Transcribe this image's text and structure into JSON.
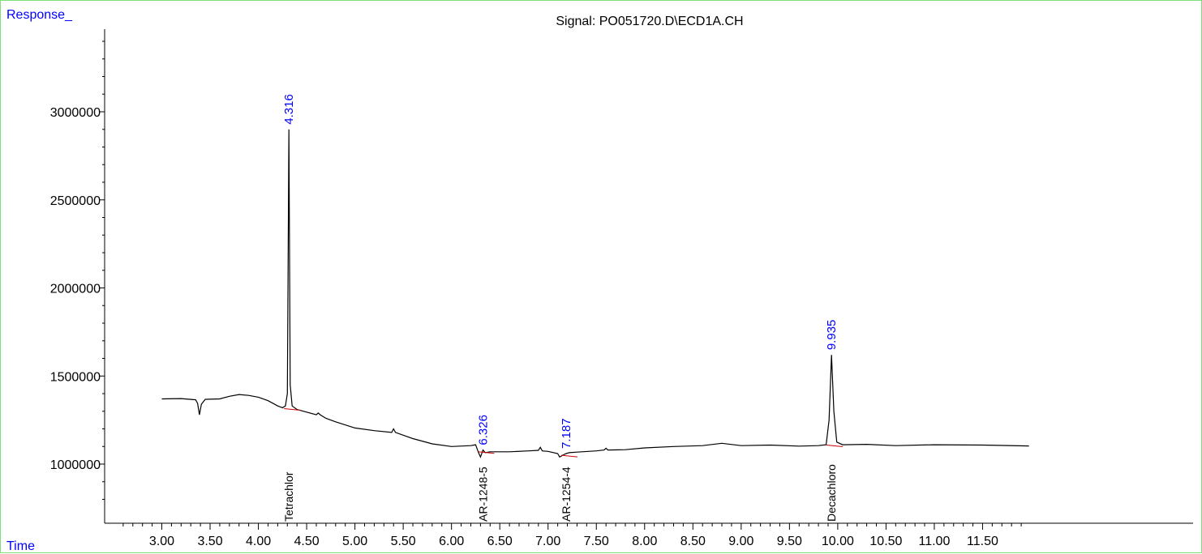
{
  "chart_data": {
    "type": "line",
    "title": "Signal: PO051720.D\\ECD1A.CH",
    "ylabel": "Response_",
    "xlabel": "Time",
    "xlim": [
      2.5,
      12.0
    ],
    "ylim": [
      700000,
      3500000
    ],
    "x_ticks": [
      "3.00",
      "3.50",
      "4.00",
      "4.50",
      "5.00",
      "5.50",
      "6.00",
      "6.50",
      "7.00",
      "7.50",
      "8.00",
      "8.50",
      "9.00",
      "9.50",
      "10.00",
      "10.50",
      "11.00",
      "11.50"
    ],
    "y_ticks": [
      "1000000",
      "1500000",
      "2000000",
      "2500000",
      "3000000"
    ],
    "series": [
      {
        "x": [
          3.0,
          3.2,
          3.35,
          3.37,
          3.39,
          3.41,
          3.45,
          3.6,
          3.7,
          3.8,
          3.9,
          4.0,
          4.1,
          4.2,
          4.25,
          4.28,
          4.3,
          4.316,
          4.33,
          4.35,
          4.4,
          4.5,
          4.6,
          4.62,
          4.64,
          4.7,
          4.8,
          5.0,
          5.2,
          5.38,
          5.4,
          5.42,
          5.6,
          5.8,
          6.0,
          6.2,
          6.25,
          6.28,
          6.3,
          6.326,
          6.35,
          6.4,
          6.6,
          6.8,
          6.9,
          6.92,
          6.94,
          7.0,
          7.1,
          7.12,
          7.15,
          7.187,
          7.22,
          7.3,
          7.5,
          7.58,
          7.6,
          7.62,
          7.8,
          8.0,
          8.3,
          8.6,
          8.8,
          9.0,
          9.3,
          9.6,
          9.8,
          9.88,
          9.91,
          9.935,
          9.96,
          9.99,
          10.05,
          10.3,
          10.6,
          11.0,
          11.5,
          11.98
        ],
        "y": [
          1370000,
          1372000,
          1365000,
          1345000,
          1280000,
          1340000,
          1368000,
          1370000,
          1385000,
          1395000,
          1390000,
          1380000,
          1360000,
          1330000,
          1320000,
          1330000,
          1400000,
          2900000,
          1450000,
          1330000,
          1310000,
          1295000,
          1280000,
          1290000,
          1280000,
          1260000,
          1240000,
          1205000,
          1190000,
          1180000,
          1200000,
          1180000,
          1145000,
          1115000,
          1100000,
          1105000,
          1110000,
          1065000,
          1040000,
          1080000,
          1065000,
          1070000,
          1070000,
          1075000,
          1078000,
          1095000,
          1075000,
          1072000,
          1060000,
          1040000,
          1050000,
          1060000,
          1065000,
          1068000,
          1075000,
          1080000,
          1090000,
          1080000,
          1082000,
          1092000,
          1100000,
          1105000,
          1118000,
          1105000,
          1108000,
          1102000,
          1105000,
          1110000,
          1250000,
          1620000,
          1300000,
          1125000,
          1110000,
          1112000,
          1105000,
          1110000,
          1108000,
          1103000
        ]
      }
    ],
    "peaks": [
      {
        "rt": "4.316",
        "x": 4.316,
        "y": 2900000,
        "compound": "Tetrachlor"
      },
      {
        "rt": "6.326",
        "x": 6.326,
        "y": 1080000,
        "compound": "AR-1248-5"
      },
      {
        "rt": "7.187",
        "x": 7.187,
        "y": 1060000,
        "compound": "AR-1254-4"
      },
      {
        "rt": "9.935",
        "x": 9.935,
        "y": 1620000,
        "compound": "Decachloro"
      }
    ],
    "colors": {
      "trace": "#000000",
      "peak_label": "#0000ff",
      "axis_label": "#0000ff",
      "baseline": "#cc0000",
      "frame": "#7de07d"
    }
  }
}
